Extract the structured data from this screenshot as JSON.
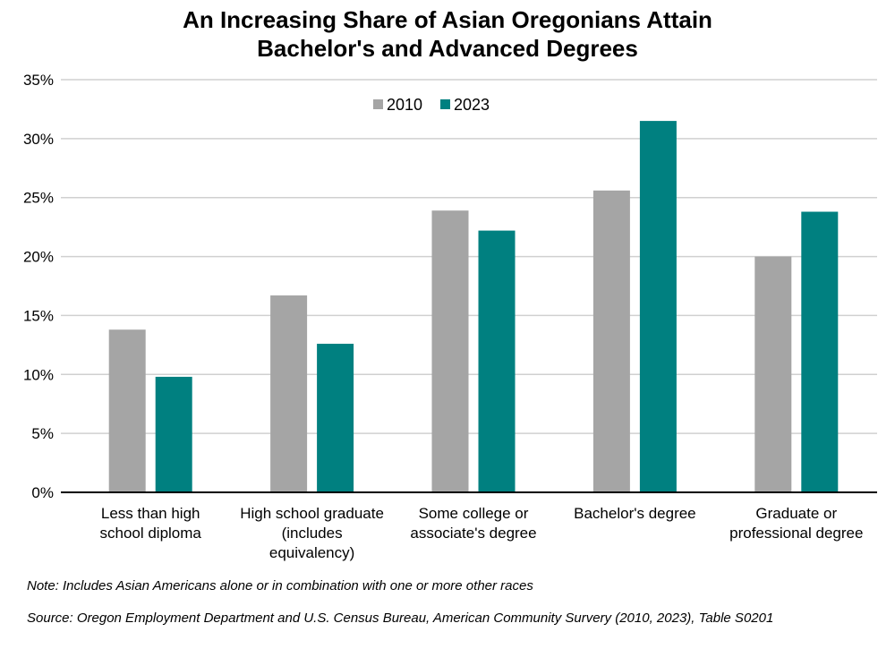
{
  "chart_data": {
    "type": "bar",
    "title_line1": "An Increasing Share of Asian Oregonians Attain",
    "title_line2": "Bachelor's and Advanced Degrees",
    "categories": [
      [
        "Less than high",
        "school diploma"
      ],
      [
        "High school graduate",
        "(includes",
        "equivalency)"
      ],
      [
        "Some college or",
        "associate's degree"
      ],
      [
        "Bachelor's degree"
      ],
      [
        "Graduate or",
        "professional degree"
      ]
    ],
    "series": [
      {
        "name": "2010",
        "color": "#A5A5A5",
        "values": [
          13.8,
          16.7,
          23.9,
          25.6,
          20.0
        ]
      },
      {
        "name": "2023",
        "color": "#008080",
        "values": [
          9.8,
          12.6,
          22.2,
          31.5,
          23.8
        ]
      }
    ],
    "ylim": [
      0,
      35
    ],
    "yticks": [
      "0%",
      "5%",
      "10%",
      "15%",
      "20%",
      "25%",
      "30%",
      "35%"
    ],
    "grid": true,
    "legend": "top-center",
    "note": "Note: Includes Asian Americans alone or in combination with one or more other races",
    "source": "Source: Oregon Employment Department and U.S. Census Bureau, American Community Survery (2010, 2023), Table S0201"
  }
}
